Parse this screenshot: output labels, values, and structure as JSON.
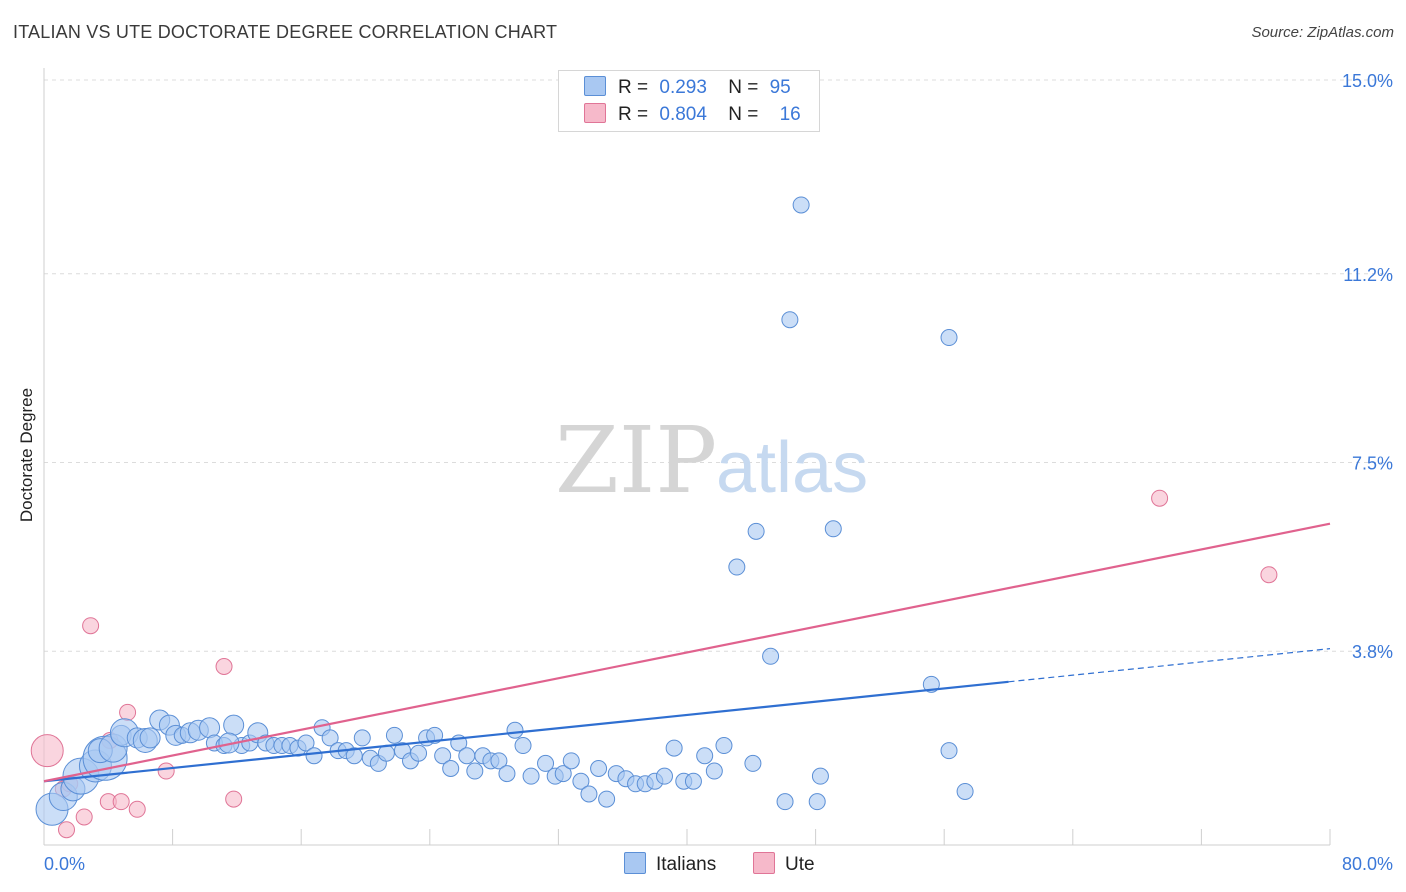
{
  "title": "ITALIAN VS UTE DOCTORATE DEGREE CORRELATION CHART",
  "source": "Source: ZipAtlas.com",
  "watermark": {
    "zip": "ZIP",
    "atlas": "atlas"
  },
  "legend": {
    "rows": [
      {
        "r_label": "R =",
        "r_value": "0.293",
        "n_label": "N =",
        "n_value": "95",
        "color": "#a9c8f2",
        "border": "#5b8fd6"
      },
      {
        "r_label": "R =",
        "r_value": "0.804",
        "n_label": "N =",
        "n_value": "16",
        "color": "#f6b9ca",
        "border": "#e07597"
      }
    ]
  },
  "bottom_legend": [
    {
      "label": "Italians",
      "color": "#a9c8f2",
      "border": "#5b8fd6"
    },
    {
      "label": "Ute",
      "color": "#f6b9ca",
      "border": "#e07597"
    }
  ],
  "chart_data": {
    "type": "scatter",
    "title": "ITALIAN VS UTE DOCTORATE DEGREE CORRELATION CHART",
    "xlabel": "",
    "ylabel": "Doctorate Degree",
    "xlim": [
      0,
      80
    ],
    "ylim": [
      0,
      15
    ],
    "x_tick_labels": [
      "0.0%",
      "80.0%"
    ],
    "y_ticks": [
      3.8,
      7.5,
      11.2,
      15.0
    ],
    "y_tick_labels": [
      "3.8%",
      "7.5%",
      "11.2%",
      "15.0%"
    ],
    "grid": "horizontal dashed",
    "series": [
      {
        "name": "Italians",
        "color": "#a9c8f2",
        "edge": "#5b8fd6",
        "trend": {
          "x0": 0,
          "y0": 1.25,
          "x1": 60,
          "y1": 3.2,
          "dash_to_x": 80,
          "dash_to_y": 3.85,
          "color": "#2f6fd1"
        },
        "points": [
          [
            0.5,
            0.7,
            16
          ],
          [
            1.2,
            0.95,
            14
          ],
          [
            1.8,
            1.1,
            12
          ],
          [
            2.3,
            1.35,
            18
          ],
          [
            3.2,
            1.55,
            16
          ],
          [
            3.8,
            1.7,
            22
          ],
          [
            3.5,
            1.85,
            12
          ],
          [
            4.3,
            1.9,
            14
          ],
          [
            4.8,
            2.15,
            10
          ],
          [
            5,
            2.2,
            14
          ],
          [
            5.8,
            2.1,
            10
          ],
          [
            6.3,
            2.05,
            12
          ],
          [
            6.6,
            2.1,
            10
          ],
          [
            7.2,
            2.45,
            10
          ],
          [
            7.8,
            2.35,
            10
          ],
          [
            8.2,
            2.15,
            10
          ],
          [
            8.6,
            2.15,
            8
          ],
          [
            9.1,
            2.2,
            10
          ],
          [
            9.6,
            2.25,
            10
          ],
          [
            10.3,
            2.3,
            10
          ],
          [
            10.6,
            2.0,
            8
          ],
          [
            11.2,
            1.95,
            8
          ],
          [
            11.8,
            2.35,
            10
          ],
          [
            12.3,
            1.95,
            8
          ],
          [
            12.8,
            2.0,
            8
          ],
          [
            13.3,
            2.2,
            10
          ],
          [
            13.8,
            2.0,
            8
          ],
          [
            14.3,
            1.95,
            8
          ],
          [
            14.8,
            1.95,
            8
          ],
          [
            15.3,
            1.95,
            8
          ],
          [
            15.8,
            1.9,
            8
          ],
          [
            16.3,
            2.0,
            8
          ],
          [
            16.8,
            1.75,
            8
          ],
          [
            17.3,
            2.3,
            8
          ],
          [
            17.8,
            2.1,
            8
          ],
          [
            18.3,
            1.85,
            8
          ],
          [
            18.8,
            1.85,
            8
          ],
          [
            19.3,
            1.75,
            8
          ],
          [
            19.8,
            2.1,
            8
          ],
          [
            20.3,
            1.7,
            8
          ],
          [
            20.8,
            1.6,
            8
          ],
          [
            21.3,
            1.8,
            8
          ],
          [
            21.8,
            2.15,
            8
          ],
          [
            22.3,
            1.85,
            8
          ],
          [
            22.8,
            1.65,
            8
          ],
          [
            23.3,
            1.8,
            8
          ],
          [
            23.8,
            2.1,
            8
          ],
          [
            24.3,
            2.15,
            8
          ],
          [
            24.8,
            1.75,
            8
          ],
          [
            25.3,
            1.5,
            8
          ],
          [
            25.8,
            2.0,
            8
          ],
          [
            26.3,
            1.75,
            8
          ],
          [
            26.8,
            1.45,
            8
          ],
          [
            27.3,
            1.75,
            8
          ],
          [
            27.8,
            1.65,
            8
          ],
          [
            28.3,
            1.65,
            8
          ],
          [
            28.8,
            1.4,
            8
          ],
          [
            29.3,
            2.25,
            8
          ],
          [
            29.8,
            1.95,
            8
          ],
          [
            30.3,
            1.35,
            8
          ],
          [
            31.2,
            1.6,
            8
          ],
          [
            31.8,
            1.35,
            8
          ],
          [
            32.3,
            1.4,
            8
          ],
          [
            32.8,
            1.65,
            8
          ],
          [
            33.4,
            1.25,
            8
          ],
          [
            33.9,
            1.0,
            8
          ],
          [
            34.5,
            1.5,
            8
          ],
          [
            35.0,
            0.9,
            8
          ],
          [
            35.6,
            1.4,
            8
          ],
          [
            36.2,
            1.3,
            8
          ],
          [
            36.8,
            1.2,
            8
          ],
          [
            37.4,
            1.2,
            8
          ],
          [
            38.0,
            1.25,
            8
          ],
          [
            38.6,
            1.35,
            8
          ],
          [
            39.2,
            1.9,
            8
          ],
          [
            39.8,
            1.25,
            8
          ],
          [
            40.4,
            1.25,
            8
          ],
          [
            41.1,
            1.75,
            8
          ],
          [
            41.7,
            1.45,
            8
          ],
          [
            42.3,
            1.95,
            8
          ],
          [
            43.1,
            5.45,
            8
          ],
          [
            44.1,
            1.6,
            8
          ],
          [
            44.3,
            6.15,
            8
          ],
          [
            45.2,
            3.7,
            8
          ],
          [
            46.1,
            0.85,
            8
          ],
          [
            46.4,
            10.3,
            8
          ],
          [
            47.1,
            12.55,
            8
          ],
          [
            48.1,
            0.85,
            8
          ],
          [
            48.3,
            1.35,
            8
          ],
          [
            49.1,
            6.2,
            8
          ],
          [
            55.2,
            3.15,
            8
          ],
          [
            56.3,
            1.85,
            8
          ],
          [
            57.3,
            1.05,
            8
          ],
          [
            56.3,
            9.95,
            8
          ],
          [
            11.5,
            2.0,
            10
          ]
        ]
      },
      {
        "name": "Ute",
        "color": "#f6b9ca",
        "edge": "#e07597",
        "trend": {
          "x0": 0,
          "y0": 1.25,
          "x1": 80,
          "y1": 6.3,
          "color": "#e0628e"
        },
        "points": [
          [
            0.2,
            1.85,
            16
          ],
          [
            1.2,
            1.1,
            8
          ],
          [
            1.4,
            0.3,
            8
          ],
          [
            2.5,
            0.55,
            8
          ],
          [
            2.9,
            4.3,
            8
          ],
          [
            4.0,
            0.85,
            8
          ],
          [
            4.1,
            2.05,
            8
          ],
          [
            4.8,
            0.85,
            8
          ],
          [
            5.2,
            2.6,
            8
          ],
          [
            5.8,
            0.7,
            8
          ],
          [
            7.6,
            1.45,
            8
          ],
          [
            11.2,
            3.5,
            8
          ],
          [
            11.8,
            0.9,
            8
          ],
          [
            69.4,
            6.8,
            8
          ],
          [
            76.2,
            5.3,
            8
          ],
          [
            1.6,
            1.2,
            8
          ]
        ]
      }
    ]
  }
}
